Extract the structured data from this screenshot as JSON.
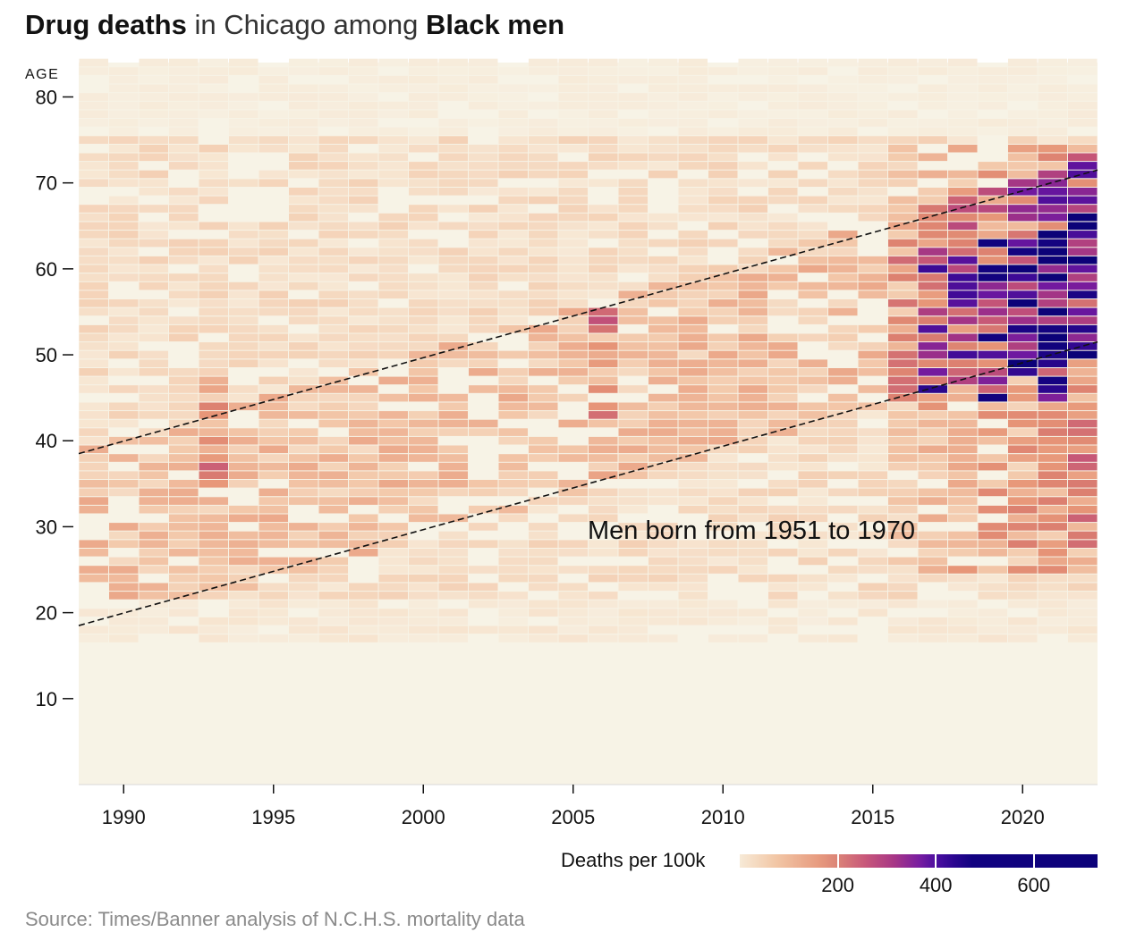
{
  "header": {
    "title_bold_1": "Drug deaths",
    "title_mid": " in Chicago among ",
    "title_bold_2": "Black men"
  },
  "source": "Source: Times/Banner analysis of N.C.H.S. mortality data",
  "legend": {
    "title": "Deaths per 100k",
    "ticks": [
      "200",
      "400",
      "600"
    ]
  },
  "chart_data": {
    "type": "heatmap",
    "title": "Drug deaths in Chicago among Black men",
    "ylabel": "AGE",
    "xlabel": "",
    "x_ticks": [
      1990,
      1995,
      2000,
      2005,
      2010,
      2015,
      2020
    ],
    "y_ticks": [
      10,
      20,
      30,
      40,
      50,
      60,
      70,
      80
    ],
    "xlim": [
      1988.5,
      2022.5
    ],
    "ylim": [
      0,
      84
    ],
    "x_years": [
      1989,
      2022
    ],
    "y_ages": [
      0,
      84
    ],
    "value_unit": "Deaths per 100k",
    "color_scale_ticks": [
      200,
      400,
      600
    ],
    "color_scale_max": 730,
    "note": "Men born from 1951 to 1970",
    "cohort_lines": [
      {
        "birth_year": 1950,
        "from": [
          1988.5,
          38.5
        ],
        "to": [
          2022.5,
          71.5
        ]
      },
      {
        "birth_year": 1970,
        "from": [
          1988.5,
          18.5
        ],
        "to": [
          2022.5,
          51.5
        ]
      }
    ],
    "cohort_band": {
      "born_from": 1951,
      "born_to": 1970
    },
    "hotspots": [
      {
        "year": 1993,
        "age_range": [
          34,
          47
        ],
        "approx_value": 150
      },
      {
        "year": 2006,
        "age_range": [
          36,
          55
        ],
        "approx_value": 160
      },
      {
        "year": 2017,
        "age_range": [
          44,
          60
        ],
        "approx_value": 300
      },
      {
        "year": 2019,
        "age_range": [
          45,
          62
        ],
        "approx_value": 400
      },
      {
        "year": 2020,
        "age_range": [
          48,
          61
        ],
        "approx_value": 620
      },
      {
        "year": 2021,
        "age_range": [
          45,
          64
        ],
        "approx_value": 600
      },
      {
        "year": 2022,
        "age_range": [
          50,
          66
        ],
        "approx_value": 650
      }
    ]
  }
}
